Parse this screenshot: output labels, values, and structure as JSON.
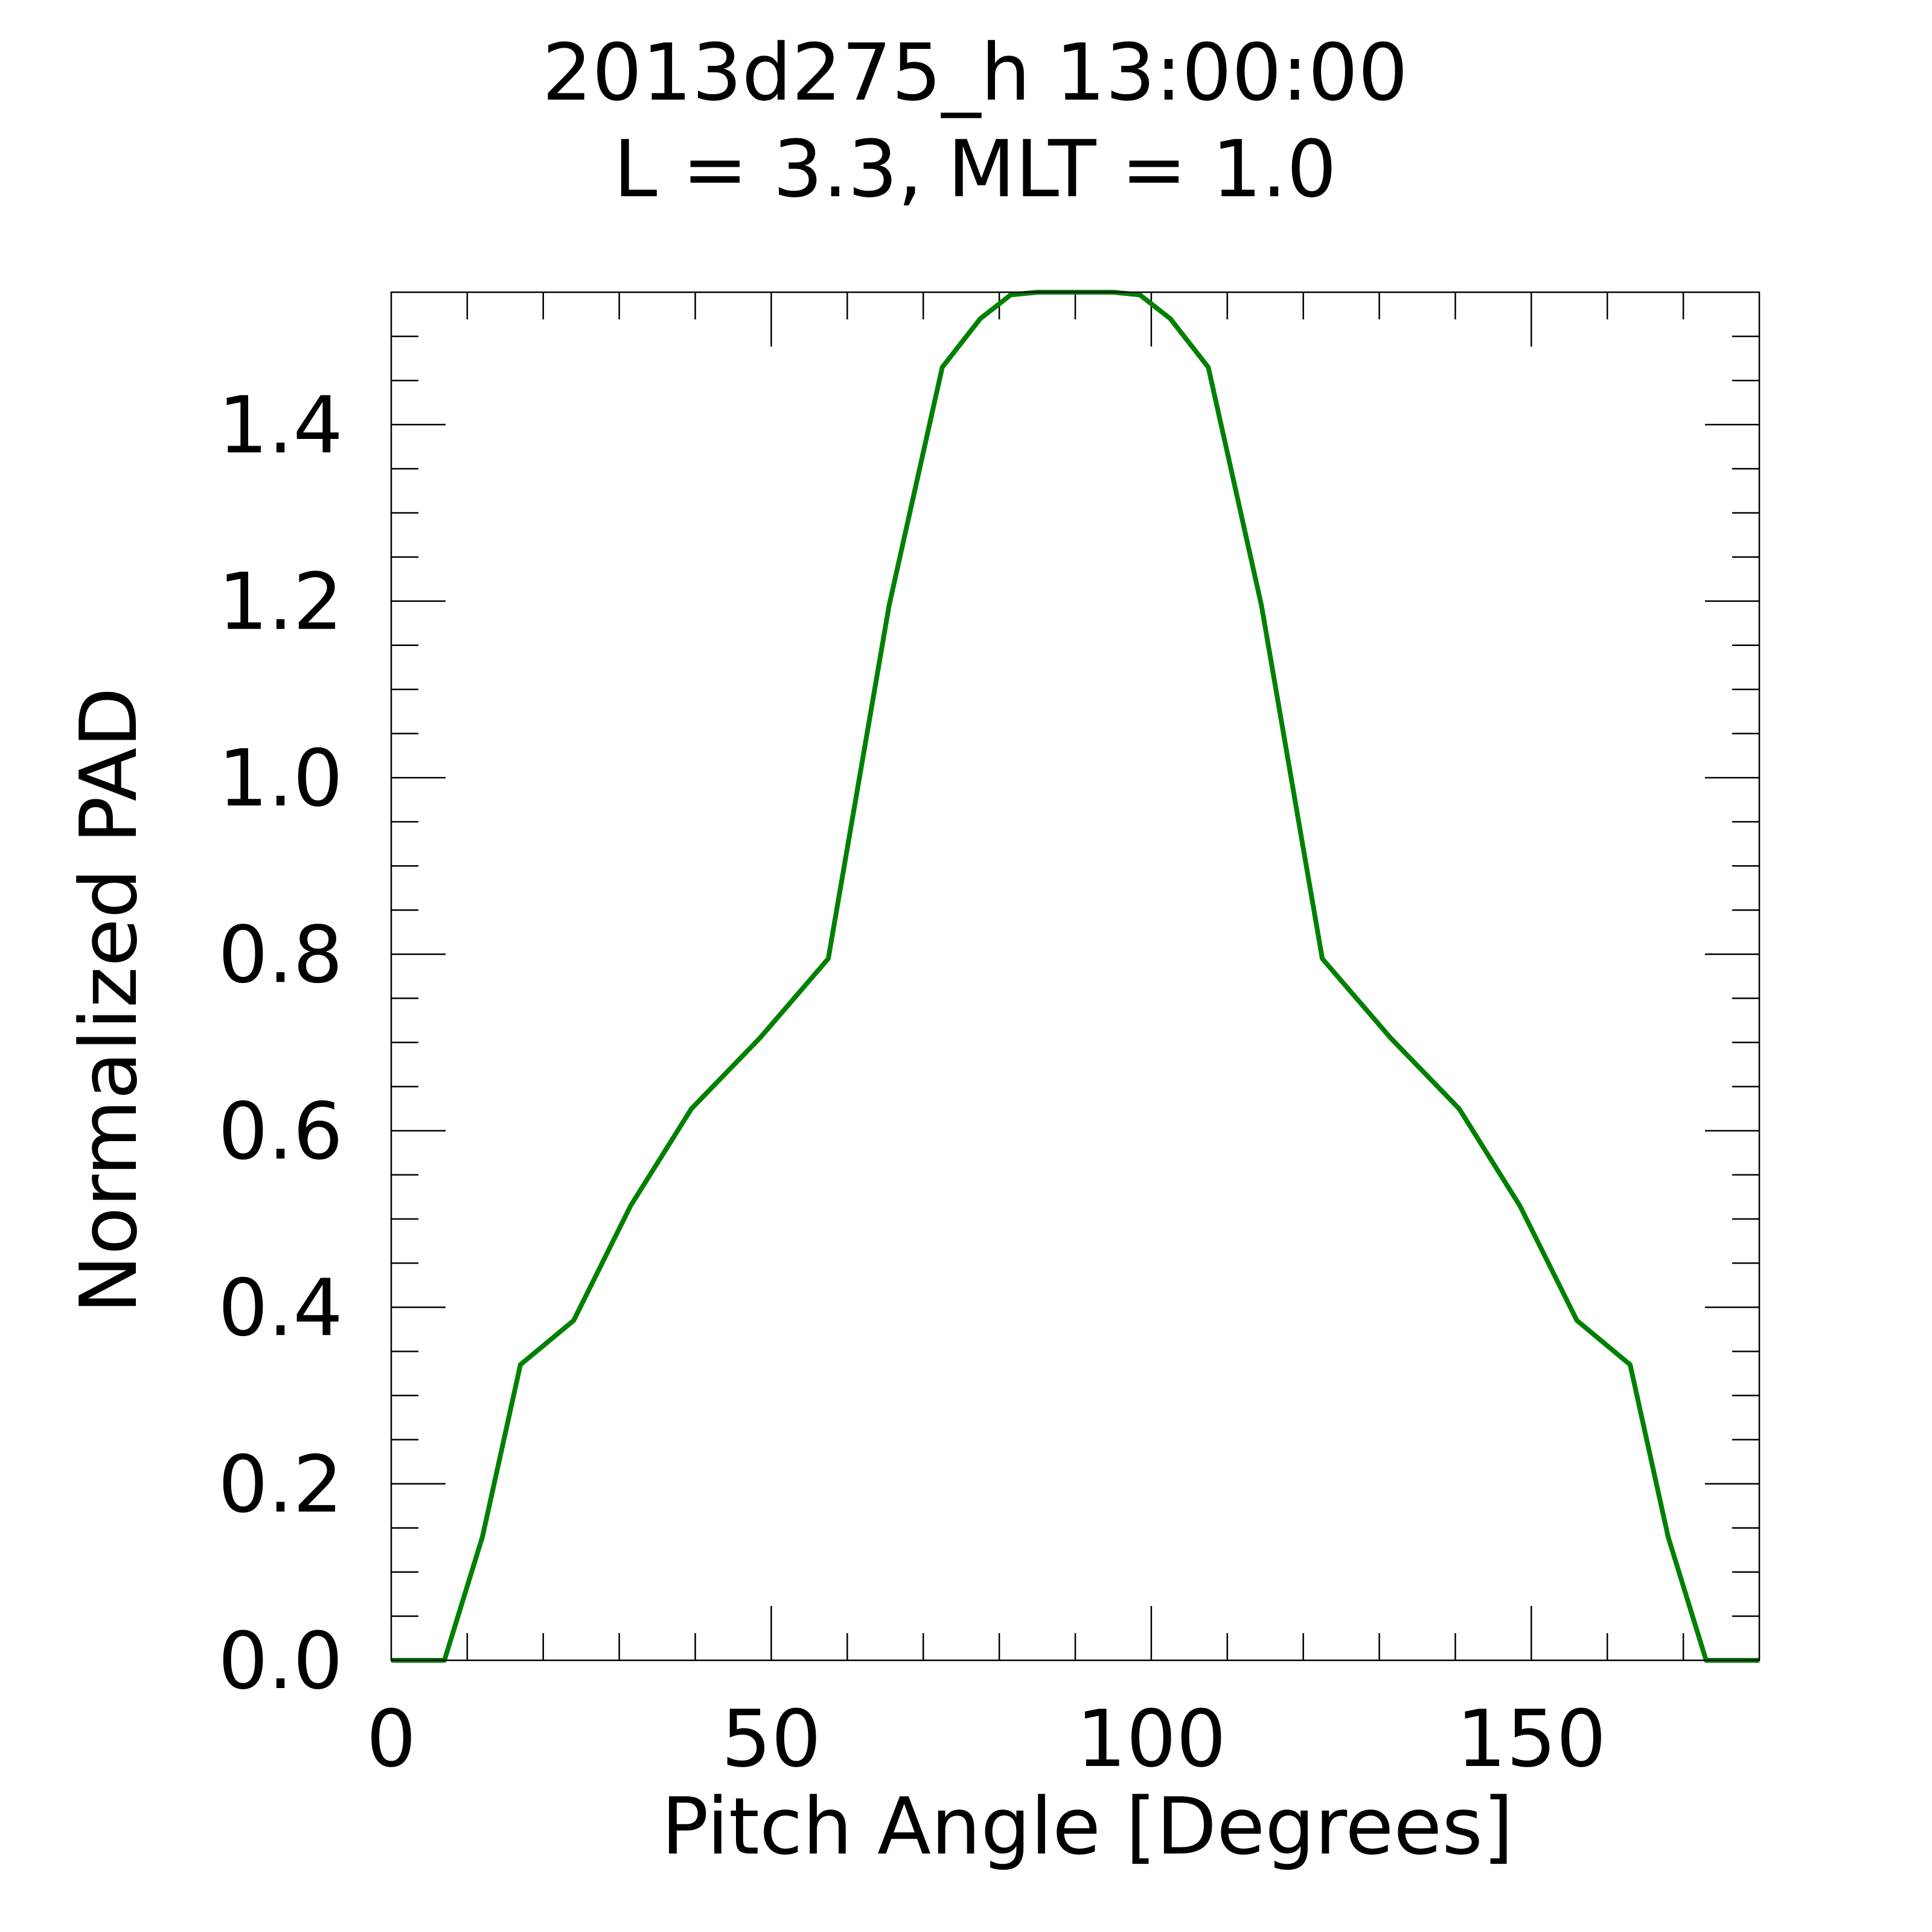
{
  "chart_data": {
    "type": "line",
    "title": "2013d275_h  13:00:00",
    "subtitle": "L = 3.3, MLT =  1.0",
    "xlabel": "Pitch Angle [Degrees]",
    "ylabel": "Normalized PAD",
    "xlim": [
      0,
      180
    ],
    "ylim": [
      0,
      1.55
    ],
    "xticks": [
      0,
      50,
      100,
      150
    ],
    "xtick_labels": [
      "0",
      "50",
      "100",
      "150"
    ],
    "yticks": [
      0.0,
      0.2,
      0.4,
      0.6,
      0.8,
      1.0,
      1.2,
      1.4
    ],
    "ytick_labels": [
      "0.0",
      "0.2",
      "0.4",
      "0.6",
      "0.8",
      "1.0",
      "1.2",
      "1.4"
    ],
    "grid": false,
    "series": [
      {
        "color": "#008000",
        "x": [
          0,
          7,
          12,
          17,
          24,
          31.5,
          39.5,
          48.5,
          57.5,
          65.5,
          72.5,
          77.5,
          81.5,
          85,
          90,
          95,
          98.5,
          102.5,
          107.5,
          114.5,
          122.5,
          131.5,
          140.5,
          148.5,
          156,
          163,
          168,
          173,
          180
        ],
        "y": [
          0,
          0,
          0.14,
          0.335,
          0.385,
          0.515,
          0.625,
          0.705,
          0.795,
          1.195,
          1.465,
          1.52,
          1.547,
          1.55,
          1.55,
          1.55,
          1.547,
          1.52,
          1.465,
          1.195,
          0.795,
          0.705,
          0.625,
          0.515,
          0.385,
          0.335,
          0.14,
          0,
          0
        ]
      }
    ]
  }
}
